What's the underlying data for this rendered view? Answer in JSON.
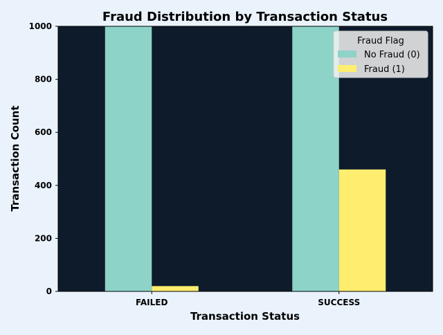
{
  "chart_data": {
    "type": "bar",
    "title": "Fraud Distribution by Transaction Status",
    "xlabel": "Transaction Status",
    "ylabel": "Transaction Count",
    "categories": [
      "FAILED",
      "SUCCESS"
    ],
    "series": [
      {
        "name": "No Fraud (0)",
        "values": [
          1000,
          1000
        ],
        "color": "#8dd3c7"
      },
      {
        "name": "Fraud (1)",
        "values": [
          20,
          460
        ],
        "color": "#ffed6f"
      }
    ],
    "ylim": [
      0,
      1000
    ],
    "yticks": [
      0,
      200,
      400,
      600,
      800,
      1000
    ],
    "grid": false,
    "legend": {
      "title": "Fraud Flag",
      "placement": "top-right"
    },
    "colors": {
      "plot_background": "#0e1b2b",
      "figure_background": "#eaf3fc"
    }
  }
}
